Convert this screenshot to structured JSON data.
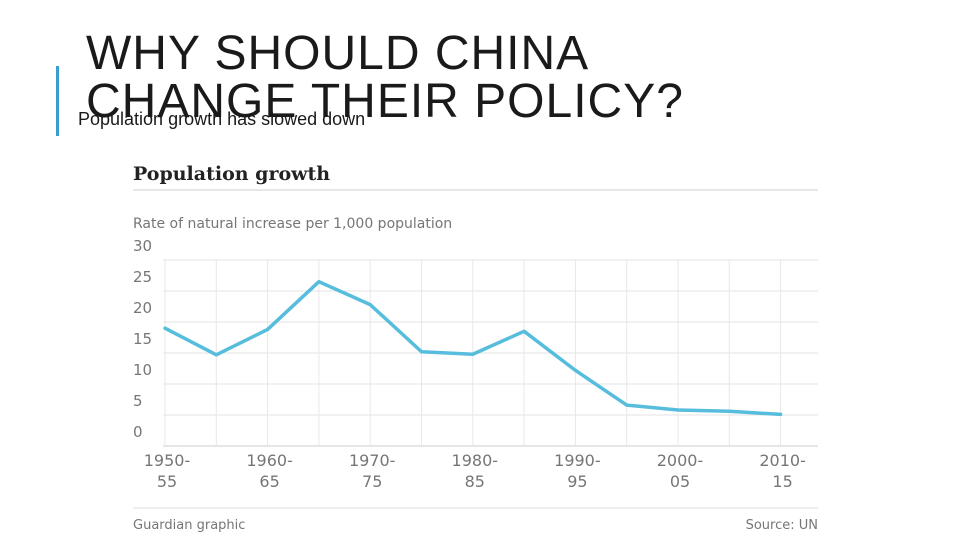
{
  "slide": {
    "title": "WHY SHOULD CHINA\nCHANGE THEIR POLICY?",
    "subtitle": "Population growth has slowed down",
    "accent_color": "#3c9ccf"
  },
  "chart_data": {
    "type": "line",
    "title": "Population growth",
    "ylabel": "Rate of natural increase per 1,000 population",
    "xlabel": "",
    "ylim": [
      0,
      30
    ],
    "yticks": [
      "30",
      "25",
      "20",
      "15",
      "10",
      "5",
      "0"
    ],
    "x_tick_labels": [
      [
        "1950-",
        "55"
      ],
      [
        "1960-",
        "65"
      ],
      [
        "1970-",
        "75"
      ],
      [
        "1980-",
        "85"
      ],
      [
        "1990-",
        "95"
      ],
      [
        "2000-",
        "05"
      ],
      [
        "2010-",
        "15"
      ]
    ],
    "categories": [
      "1950-55",
      "1955-60",
      "1960-65",
      "1965-70",
      "1970-75",
      "1975-80",
      "1980-85",
      "1985-90",
      "1990-95",
      "1995-2000",
      "2000-05",
      "2005-10",
      "2010-15"
    ],
    "series": [
      {
        "name": "China",
        "values": [
          19,
          14.7,
          18.8,
          26.5,
          22.8,
          15.2,
          14.8,
          18.5,
          12.2,
          6.6,
          5.8,
          5.6,
          5.1
        ],
        "color": "#56bddc"
      }
    ],
    "grid": true,
    "footer_left": "Guardian graphic",
    "footer_right": "Source: UN"
  }
}
